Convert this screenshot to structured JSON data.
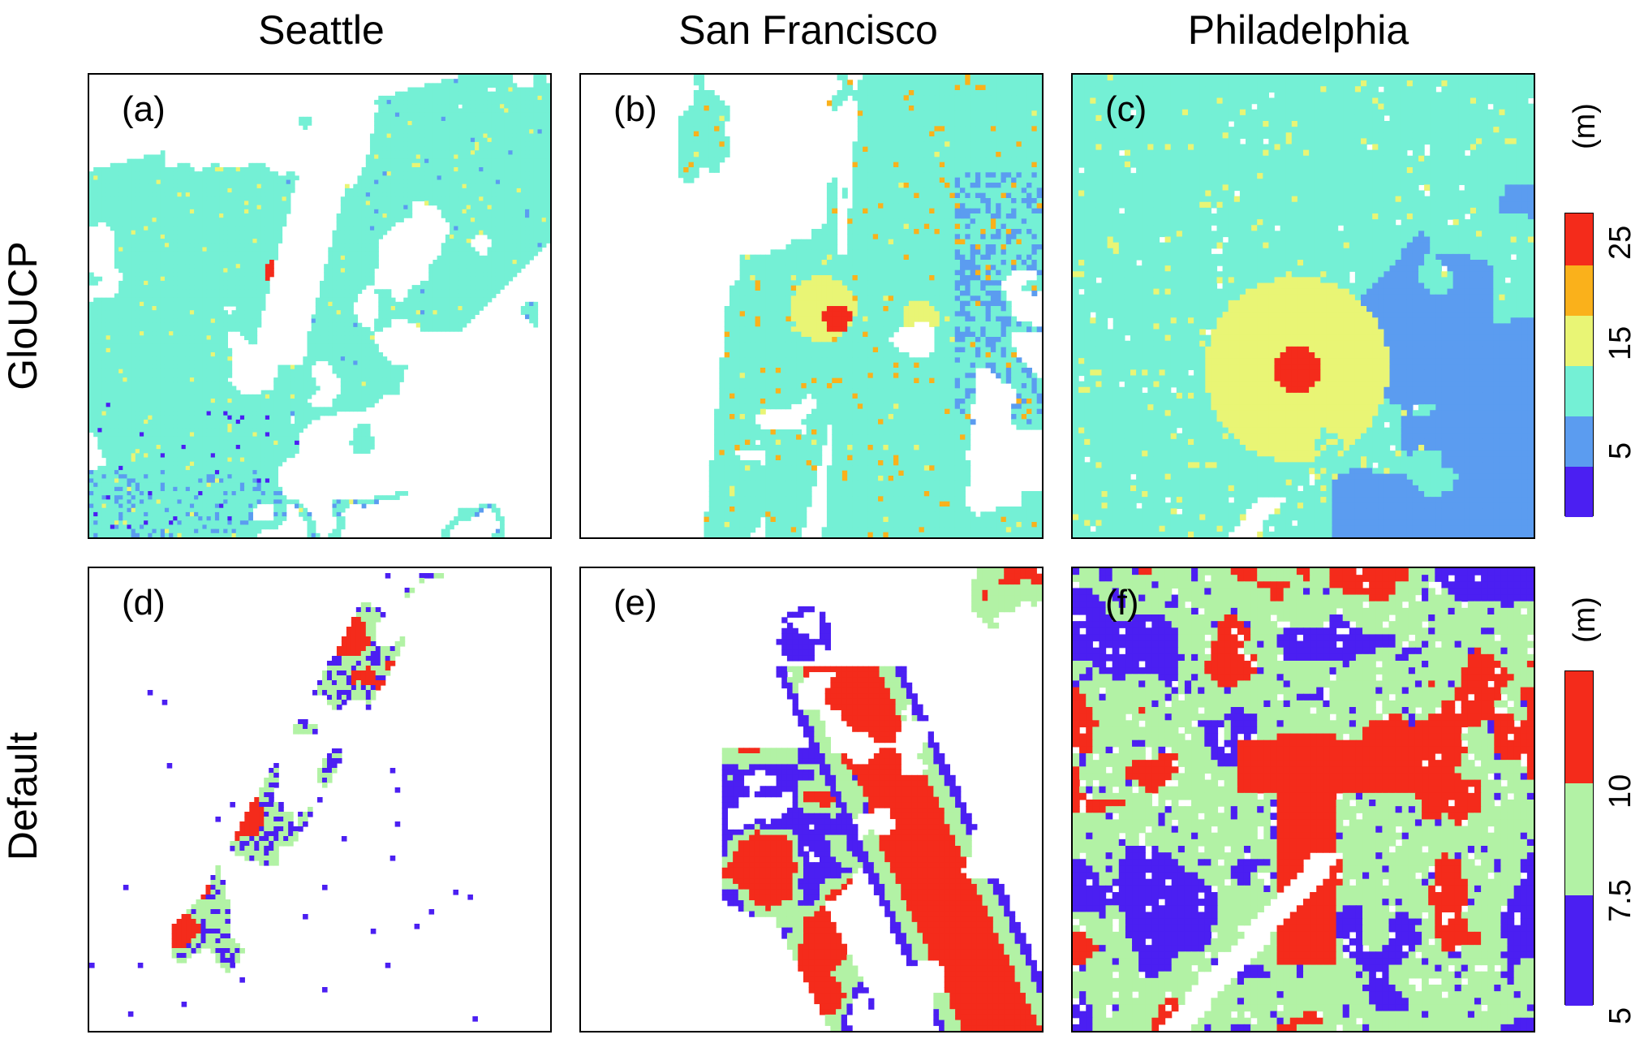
{
  "columns": [
    "Seattle",
    "San Francisco",
    "Philadelphia"
  ],
  "rows": [
    "GloUCP",
    "Default"
  ],
  "panels": [
    {
      "label": "(a)",
      "row": 0,
      "col": 0
    },
    {
      "label": "(b)",
      "row": 0,
      "col": 1
    },
    {
      "label": "(c)",
      "row": 0,
      "col": 2
    },
    {
      "label": "(d)",
      "row": 1,
      "col": 0
    },
    {
      "label": "(e)",
      "row": 1,
      "col": 1
    },
    {
      "label": "(f)",
      "row": 1,
      "col": 2
    }
  ],
  "colorbars": [
    {
      "unit": "(m)",
      "ticks": [
        "5",
        "15",
        "25"
      ],
      "colors": [
        "#4b1ff2",
        "#5b9cf0",
        "#74f0d5",
        "#e9f575",
        "#fab11b",
        "#f42b1b"
      ]
    },
    {
      "unit": "(m)",
      "ticks": [
        "5",
        "7.5",
        "10"
      ],
      "colors": [
        "#4b1ff2",
        "#b2f2a5",
        "#f42b1b"
      ]
    }
  ],
  "palette": {
    "white": "#ffffff",
    "purple": "#4b1ff2",
    "blue": "#5b9cf0",
    "cyan": "#74f0d5",
    "yellow": "#e9f575",
    "orange": "#fab11b",
    "red": "#f42b1b",
    "lightgreen": "#b2f2a5"
  }
}
